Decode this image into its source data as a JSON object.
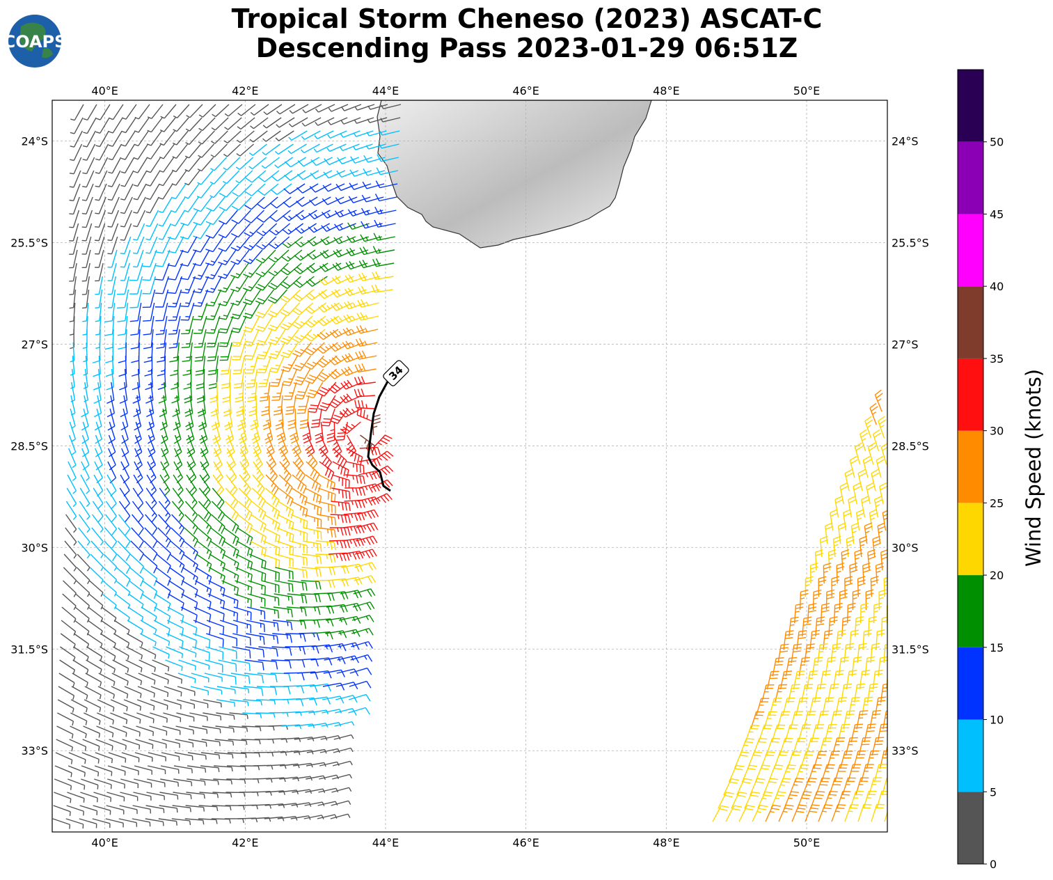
{
  "header": {
    "title_line1": "Tropical Storm Cheneso (2023) ASCAT-C",
    "title_line2": "Descending Pass 2023-01-29 06:51Z",
    "logo_text": "COAPS"
  },
  "map": {
    "lon_ticks": [
      "40°E",
      "42°E",
      "44°E",
      "46°E",
      "48°E",
      "50°E"
    ],
    "lat_ticks": [
      "24°S",
      "25.5°S",
      "27°S",
      "28.5°S",
      "30°S",
      "31.5°S",
      "33°S"
    ],
    "isotach_label": "34",
    "land_name": "Madagascar (south)",
    "colors": {
      "land": "#d9d9d9",
      "coast": "#333333",
      "grid": "#b0b0b0",
      "isotach": "#000000"
    }
  },
  "colorbar": {
    "label": "Wind Speed (knots)",
    "tick_labels": [
      "0",
      "5",
      "10",
      "15",
      "20",
      "25",
      "30",
      "35",
      "40",
      "45",
      "50"
    ],
    "bins": [
      {
        "min": 0,
        "max": 5,
        "color": "#555555"
      },
      {
        "min": 5,
        "max": 10,
        "color": "#00bfff"
      },
      {
        "min": 10,
        "max": 15,
        "color": "#0033ff"
      },
      {
        "min": 15,
        "max": 20,
        "color": "#008f00"
      },
      {
        "min": 20,
        "max": 25,
        "color": "#ffd700"
      },
      {
        "min": 25,
        "max": 30,
        "color": "#ff8c00"
      },
      {
        "min": 30,
        "max": 35,
        "color": "#ff0f0f"
      },
      {
        "min": 35,
        "max": 40,
        "color": "#7f3b2b"
      },
      {
        "min": 40,
        "max": 45,
        "color": "#ff00ff"
      },
      {
        "min": 45,
        "max": 50,
        "color": "#8b00b5"
      },
      {
        "min": 50,
        "max": 55,
        "color": "#2a0055"
      }
    ]
  },
  "chart_data": {
    "type": "wind-barb-map",
    "lon_range": [
      39.25,
      51.15
    ],
    "lat_range": [
      -34.2,
      -23.4
    ],
    "units": "knots",
    "storm_center": {
      "lon": 43.7,
      "lat": -28.3
    },
    "swaths": [
      {
        "name": "west",
        "west_edge_lat": [
          -34.2,
          -23.4
        ],
        "west_edge_lon": [
          39.25,
          39.5
        ],
        "east_edge_lon": [
          43.3,
          44.4
        ]
      },
      {
        "name": "east",
        "west_edge_lon": [
          51.15,
          48.6
        ],
        "east_edge_lon": 51.15,
        "lat_range": [
          -34.2,
          -27.8
        ]
      }
    ],
    "isotach_34kt": [
      [
        43.8,
        -27.8
      ],
      [
        43.65,
        -28.15
      ],
      [
        43.55,
        -28.55
      ],
      [
        43.5,
        -28.7
      ],
      [
        43.65,
        -29.0
      ],
      [
        43.8,
        -29.25
      ]
    ]
  }
}
